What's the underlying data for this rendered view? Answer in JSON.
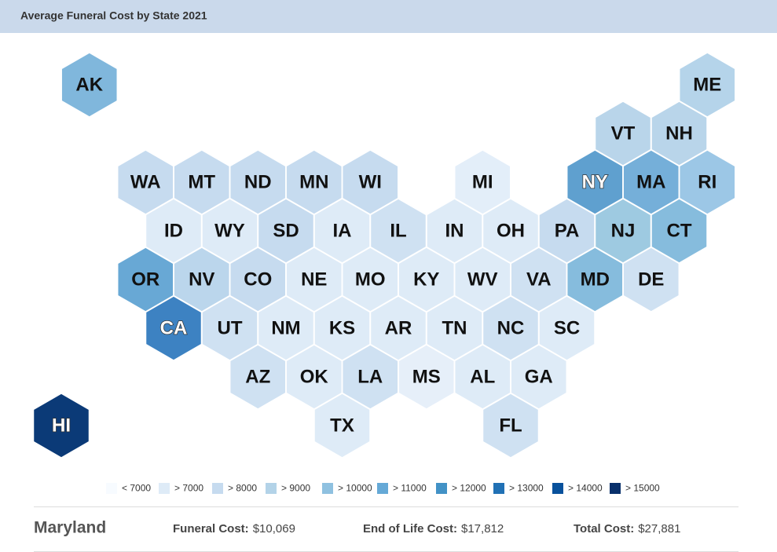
{
  "title": "Average Funeral Cost by State 2021",
  "hexes": [
    {
      "label": "AK",
      "color": "#80b7dc"
    },
    {
      "label": "ME",
      "color": "#b5d4ea"
    },
    {
      "label": "VT",
      "color": "#b9d5ea"
    },
    {
      "label": "NH",
      "color": "#b9d5ea"
    },
    {
      "label": "WA",
      "color": "#c6dbef"
    },
    {
      "label": "MT",
      "color": "#c6dbef"
    },
    {
      "label": "ND",
      "color": "#c6dbef"
    },
    {
      "label": "MN",
      "color": "#c6dbef"
    },
    {
      "label": "WI",
      "color": "#c6dbef"
    },
    {
      "label": "MI",
      "color": "#e3eef9"
    },
    {
      "label": "NY",
      "color": "#5fa0cf"
    },
    {
      "label": "MA",
      "color": "#75afd9"
    },
    {
      "label": "RI",
      "color": "#9cc7e6"
    },
    {
      "label": "ID",
      "color": "#deebf7"
    },
    {
      "label": "WY",
      "color": "#deebf7"
    },
    {
      "label": "SD",
      "color": "#c6dbef"
    },
    {
      "label": "IA",
      "color": "#deebf7"
    },
    {
      "label": "IL",
      "color": "#cfe1f2"
    },
    {
      "label": "IN",
      "color": "#deebf7"
    },
    {
      "label": "OH",
      "color": "#deebf7"
    },
    {
      "label": "PA",
      "color": "#c6dbef"
    },
    {
      "label": "NJ",
      "color": "#9ecae1"
    },
    {
      "label": "CT",
      "color": "#86bcdd"
    },
    {
      "label": "OR",
      "color": "#68a8d5"
    },
    {
      "label": "NV",
      "color": "#bbd6ec"
    },
    {
      "label": "CO",
      "color": "#c6dbef"
    },
    {
      "label": "NE",
      "color": "#deebf7"
    },
    {
      "label": "MO",
      "color": "#deebf7"
    },
    {
      "label": "KY",
      "color": "#deebf7"
    },
    {
      "label": "WV",
      "color": "#deebf7"
    },
    {
      "label": "VA",
      "color": "#cfe1f2"
    },
    {
      "label": "MD",
      "color": "#86bcdd"
    },
    {
      "label": "DE",
      "color": "#cfe1f2"
    },
    {
      "label": "CA",
      "color": "#3d82c2"
    },
    {
      "label": "UT",
      "color": "#cfe1f2"
    },
    {
      "label": "NM",
      "color": "#deebf7"
    },
    {
      "label": "KS",
      "color": "#deebf7"
    },
    {
      "label": "AR",
      "color": "#deebf7"
    },
    {
      "label": "TN",
      "color": "#deebf7"
    },
    {
      "label": "NC",
      "color": "#cfe1f2"
    },
    {
      "label": "SC",
      "color": "#deebf7"
    },
    {
      "label": "AZ",
      "color": "#cfe1f2"
    },
    {
      "label": "OK",
      "color": "#deebf7"
    },
    {
      "label": "LA",
      "color": "#cfe1f2"
    },
    {
      "label": "MS",
      "color": "#e6eff9"
    },
    {
      "label": "AL",
      "color": "#deebf7"
    },
    {
      "label": "GA",
      "color": "#deebf7"
    },
    {
      "label": "HI",
      "color": "#0b3a77"
    },
    {
      "label": "TX",
      "color": "#deebf7"
    },
    {
      "label": "FL",
      "color": "#cfe1f2"
    }
  ],
  "legend": [
    {
      "label": "< 7000",
      "color": "#f7fbff"
    },
    {
      "label": "> 7000",
      "color": "#deebf7"
    },
    {
      "label": "> 8000",
      "color": "#c6dbef"
    },
    {
      "label": "> 9000",
      "color": "#b3d3e8"
    },
    {
      "label": "> 10000",
      "color": "#8fc1e0"
    },
    {
      "label": "> 11000",
      "color": "#65a9d7"
    },
    {
      "label": "> 12000",
      "color": "#4292c6"
    },
    {
      "label": "> 13000",
      "color": "#2171b5"
    },
    {
      "label": "> 14000",
      "color": "#08519c"
    },
    {
      "label": "> 15000",
      "color": "#08306b"
    }
  ],
  "details": {
    "state": "Maryland",
    "items": [
      {
        "label": "Funeral Cost:",
        "value": "$10,069"
      },
      {
        "label": "End of Life Cost:",
        "value": "$17,812"
      },
      {
        "label": "Total Cost:",
        "value": "$27,881"
      }
    ]
  }
}
